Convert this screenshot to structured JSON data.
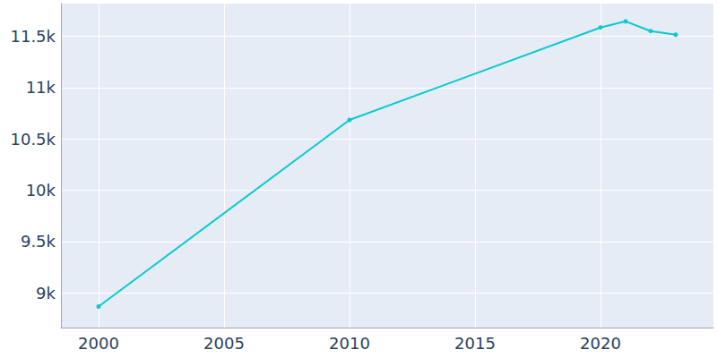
{
  "chart_data": {
    "type": "line",
    "x": [
      2000,
      2010,
      2020,
      2021,
      2022,
      2023
    ],
    "values": [
      8865,
      10685,
      11587,
      11647,
      11552,
      11517
    ],
    "color": "#0bc9cd",
    "marker": "circle",
    "xlim": [
      1998.5,
      2024.5
    ],
    "xticks": [
      2000,
      2005,
      2010,
      2015,
      2020
    ],
    "ylim": [
      8660,
      11820
    ],
    "yticks": [
      {
        "value": 9000,
        "label": "9k"
      },
      {
        "value": 9500,
        "label": "9.5k"
      },
      {
        "value": 10000,
        "label": "10k"
      },
      {
        "value": 10500,
        "label": "10.5k"
      },
      {
        "value": 11000,
        "label": "11k"
      },
      {
        "value": 11500,
        "label": "11.5k"
      }
    ],
    "grid": true
  }
}
